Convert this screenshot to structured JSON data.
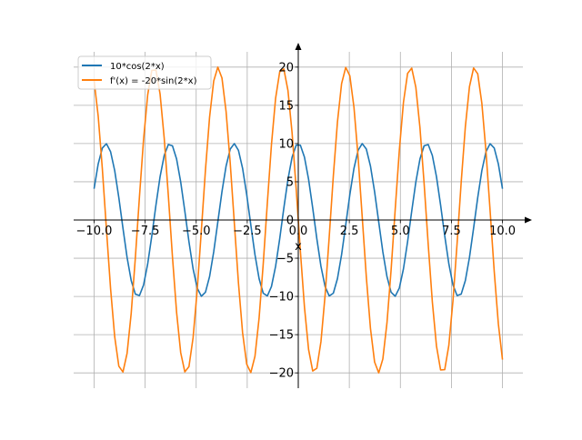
{
  "chart_data": {
    "type": "line",
    "title": "",
    "xlabel": "x",
    "ylabel": "",
    "xlim": [
      -11,
      11
    ],
    "ylim": [
      -22,
      22
    ],
    "grid": true,
    "legend_position": "top-left",
    "x_ticks": [
      -10.0,
      -7.5,
      -5.0,
      -2.5,
      0.0,
      2.5,
      5.0,
      7.5,
      10.0
    ],
    "x_tick_labels": [
      "−10.0",
      "−7.5",
      "−5.0",
      "−2.5",
      "0.0",
      "2.5",
      "5.0",
      "7.5",
      "10.0"
    ],
    "y_ticks": [
      -20,
      -15,
      -10,
      -5,
      0,
      5,
      10,
      15,
      20
    ],
    "y_tick_labels": [
      "−20",
      "−15",
      "−10",
      "−5",
      "0",
      "5",
      "10",
      "15",
      "20"
    ],
    "sampling": {
      "x_start": -10,
      "x_end": 10,
      "n_points": 100
    },
    "series": [
      {
        "name": "10*cos(2*x)",
        "amplitude": 10,
        "func": "cos",
        "frequency": 2,
        "color": "#1f77b4"
      },
      {
        "name": "f'(x) = -20*sin(2*x)",
        "amplitude": -20,
        "func": "sin",
        "frequency": 2,
        "color": "#ff7f0e"
      }
    ]
  }
}
